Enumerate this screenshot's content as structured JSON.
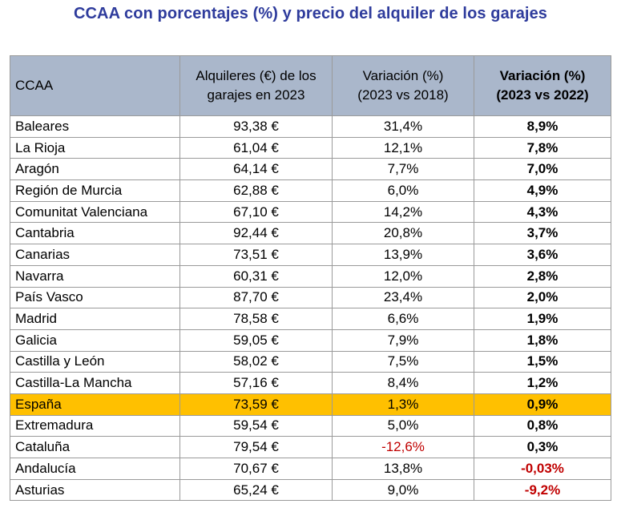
{
  "title": "CCAA con porcentajes (%) y precio del alquiler de los garajes",
  "colors": {
    "title": "#2e3b9c",
    "header_bg": "#aab7cb",
    "highlight_bg": "#ffc000",
    "negative": "#c00000"
  },
  "table": {
    "headers": {
      "ccaa": "CCAA",
      "alquileres": [
        "Alquileres (€) de los",
        "garajes en 2023"
      ],
      "variacion_2018": [
        "Variación (%)",
        "(2023 vs 2018)"
      ],
      "variacion_2022": [
        "Variación (%)",
        "(2023 vs 2022)"
      ]
    },
    "rows": [
      {
        "ccaa": "Baleares",
        "alquiler": "93,38 €",
        "var_2018": "31,4%",
        "var_2022": "8,9%"
      },
      {
        "ccaa": "La Rioja",
        "alquiler": "61,04 €",
        "var_2018": "12,1%",
        "var_2022": "7,8%"
      },
      {
        "ccaa": "Aragón",
        "alquiler": "64,14 €",
        "var_2018": "7,7%",
        "var_2022": "7,0%"
      },
      {
        "ccaa": "Región de Murcia",
        "alquiler": "62,88 €",
        "var_2018": "6,0%",
        "var_2022": "4,9%"
      },
      {
        "ccaa": "Comunitat Valenciana",
        "alquiler": "67,10 €",
        "var_2018": "14,2%",
        "var_2022": "4,3%"
      },
      {
        "ccaa": "Cantabria",
        "alquiler": "92,44 €",
        "var_2018": "20,8%",
        "var_2022": "3,7%"
      },
      {
        "ccaa": "Canarias",
        "alquiler": "73,51 €",
        "var_2018": "13,9%",
        "var_2022": "3,6%"
      },
      {
        "ccaa": "Navarra",
        "alquiler": "60,31 €",
        "var_2018": "12,0%",
        "var_2022": "2,8%"
      },
      {
        "ccaa": "País Vasco",
        "alquiler": "87,70 €",
        "var_2018": "23,4%",
        "var_2022": "2,0%"
      },
      {
        "ccaa": "Madrid",
        "alquiler": "78,58 €",
        "var_2018": "6,6%",
        "var_2022": "1,9%"
      },
      {
        "ccaa": "Galicia",
        "alquiler": "59,05 €",
        "var_2018": "7,9%",
        "var_2022": "1,8%"
      },
      {
        "ccaa": "Castilla y León",
        "alquiler": "58,02 €",
        "var_2018": "7,5%",
        "var_2022": "1,5%"
      },
      {
        "ccaa": "Castilla-La Mancha",
        "alquiler": "57,16 €",
        "var_2018": "8,4%",
        "var_2022": "1,2%"
      },
      {
        "ccaa": "España",
        "alquiler": "73,59 €",
        "var_2018": "1,3%",
        "var_2022": "0,9%",
        "highlight": true
      },
      {
        "ccaa": "Extremadura",
        "alquiler": "59,54 €",
        "var_2018": "5,0%",
        "var_2022": "0,8%"
      },
      {
        "ccaa": "Cataluña",
        "alquiler": "79,54 €",
        "var_2018": "-12,6%",
        "var_2022": "0,3%",
        "var_2018_negative": true
      },
      {
        "ccaa": "Andalucía",
        "alquiler": "70,67 €",
        "var_2018": "13,8%",
        "var_2022": "-0,03%",
        "var_2022_negative": true
      },
      {
        "ccaa": "Asturias",
        "alquiler": "65,24 €",
        "var_2018": "9,0%",
        "var_2022": "-9,2%",
        "var_2022_negative": true
      }
    ]
  }
}
